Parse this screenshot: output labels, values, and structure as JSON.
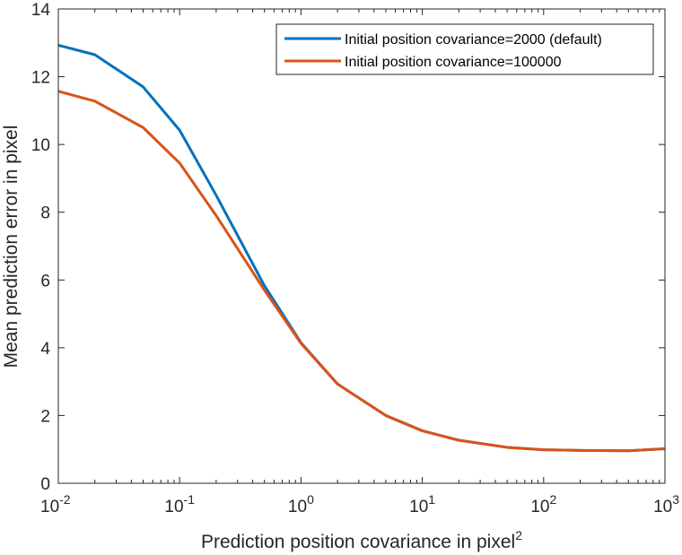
{
  "chart_data": {
    "type": "line",
    "xscale": "log",
    "xlim": [
      0.01,
      1000
    ],
    "ylim": [
      0,
      14
    ],
    "xlabel": "Prediction position covariance in pixel",
    "xlabel_superscript": "2",
    "ylabel": "Mean prediction error in pixel",
    "grid": false,
    "legend_position": "top-right",
    "x_ticks": [
      {
        "base": "10",
        "exp": "-2",
        "value": 0.01
      },
      {
        "base": "10",
        "exp": "-1",
        "value": 0.1
      },
      {
        "base": "10",
        "exp": "0",
        "value": 1
      },
      {
        "base": "10",
        "exp": "1",
        "value": 10
      },
      {
        "base": "10",
        "exp": "2",
        "value": 100
      },
      {
        "base": "10",
        "exp": "3",
        "value": 1000
      }
    ],
    "y_ticks": [
      "0",
      "2",
      "4",
      "6",
      "8",
      "10",
      "12",
      "14"
    ],
    "x": [
      0.01,
      0.02,
      0.05,
      0.1,
      0.2,
      0.5,
      1,
      2,
      5,
      10,
      20,
      50,
      100,
      200,
      500,
      1000
    ],
    "series": [
      {
        "name": "Initial position covariance=2000 (default)",
        "color": "#0072BD",
        "values": [
          12.93,
          12.65,
          11.7,
          10.42,
          8.5,
          5.83,
          4.15,
          2.93,
          2.0,
          1.55,
          1.27,
          1.06,
          0.99,
          0.97,
          0.96,
          1.02
        ]
      },
      {
        "name": "Initial position covariance=100000",
        "color": "#D95319",
        "values": [
          11.57,
          11.28,
          10.5,
          9.45,
          7.9,
          5.7,
          4.13,
          2.93,
          2.0,
          1.55,
          1.27,
          1.06,
          0.99,
          0.97,
          0.96,
          1.02
        ]
      }
    ]
  }
}
